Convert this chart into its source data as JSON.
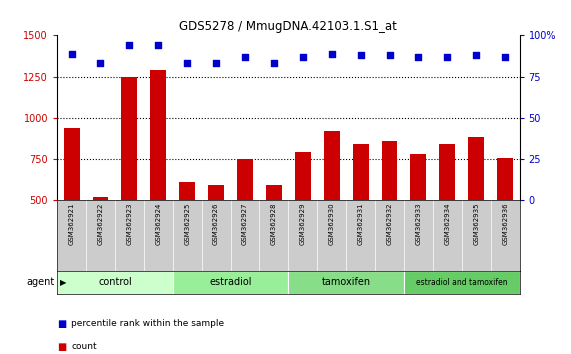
{
  "title": "GDS5278 / MmugDNA.42103.1.S1_at",
  "categories": [
    "GSM362921",
    "GSM362922",
    "GSM362923",
    "GSM362924",
    "GSM362925",
    "GSM362926",
    "GSM362927",
    "GSM362928",
    "GSM362929",
    "GSM362930",
    "GSM362931",
    "GSM362932",
    "GSM362933",
    "GSM362934",
    "GSM362935",
    "GSM362936"
  ],
  "bar_values": [
    940,
    520,
    1250,
    1290,
    610,
    590,
    750,
    590,
    790,
    920,
    840,
    860,
    780,
    840,
    880,
    755
  ],
  "bar_color": "#cc0000",
  "dot_values": [
    1390,
    1330,
    1440,
    1440,
    1330,
    1330,
    1370,
    1330,
    1370,
    1390,
    1380,
    1380,
    1370,
    1370,
    1380,
    1370
  ],
  "dot_color": "#0000cc",
  "ylim_left": [
    500,
    1500
  ],
  "ylim_right": [
    0,
    100
  ],
  "yticks_left": [
    500,
    750,
    1000,
    1250,
    1500
  ],
  "yticks_right": [
    0,
    25,
    50,
    75,
    100
  ],
  "ytick_labels_right": [
    "0",
    "25",
    "50",
    "75",
    "100%"
  ],
  "groups": [
    {
      "label": "control",
      "start": 0,
      "end": 4,
      "color": "#ccffcc"
    },
    {
      "label": "estradiol",
      "start": 4,
      "end": 8,
      "color": "#99ee99"
    },
    {
      "label": "tamoxifen",
      "start": 8,
      "end": 12,
      "color": "#88dd88"
    },
    {
      "label": "estradiol and tamoxifen",
      "start": 12,
      "end": 16,
      "color": "#66cc66"
    }
  ],
  "agent_label": "agent",
  "legend_count_label": "count",
  "legend_percentile_label": "percentile rank within the sample",
  "bar_width": 0.55,
  "plot_bg": "#ffffff",
  "tick_area_bg": "#cccccc",
  "left_tick_color": "#cc0000",
  "right_tick_color": "#0000cc",
  "grid_dotted_vals": [
    750,
    1000,
    1250
  ]
}
